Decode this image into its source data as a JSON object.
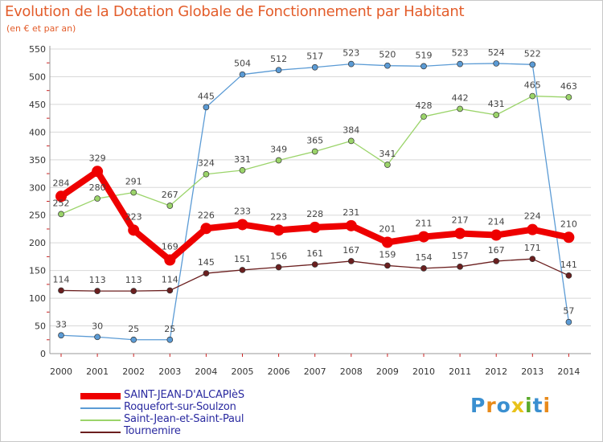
{
  "title": "Evolution de la Dotation Globale de Fonctionnement par Habitant",
  "subtitle": "(en € et par an)",
  "brand": {
    "text": "Proxiti",
    "letter_colors": [
      "#3a8fd0",
      "#e88a1a",
      "#3a8fd0",
      "#e8c21a",
      "#5aaa2a",
      "#3a8fd0",
      "#e88a1a"
    ]
  },
  "colors": {
    "title": "#e35d2b",
    "grid": "#d8d8d8",
    "axis_ticks": "#cc2222"
  },
  "chart_data": {
    "type": "line",
    "title": "Evolution de la Dotation Globale de Fonctionnement par Habitant",
    "ylabel": "(en € et par an)",
    "xlabel": "",
    "x": [
      "2000",
      "2001",
      "2002",
      "2003",
      "2004",
      "2005",
      "2006",
      "2007",
      "2008",
      "2009",
      "2010",
      "2011",
      "2012",
      "2013",
      "2014"
    ],
    "ylim": [
      0,
      550
    ],
    "yticks": [
      0,
      50,
      100,
      150,
      200,
      250,
      300,
      350,
      400,
      450,
      500,
      550
    ],
    "grid": "horizontal",
    "legend_position": "bottom-left",
    "series": [
      {
        "name": "Roquefort-sur-Soulzon",
        "color": "#5b9bd5",
        "values": [
          33,
          30,
          25,
          25,
          445,
          504,
          512,
          517,
          523,
          520,
          519,
          523,
          524,
          522,
          57
        ]
      },
      {
        "name": "Saint-Jean-et-Saint-Paul",
        "color": "#9bd46a",
        "values": [
          252,
          280,
          291,
          267,
          324,
          331,
          349,
          365,
          384,
          341,
          428,
          442,
          431,
          465,
          463
        ]
      },
      {
        "name": "Tournemire",
        "color": "#6b1f1f",
        "values": [
          114,
          113,
          113,
          114,
          145,
          151,
          156,
          161,
          167,
          159,
          154,
          157,
          167,
          171,
          141
        ]
      },
      {
        "name": "SAINT-JEAN-D'ALCAPIèS",
        "color": "#ee0000",
        "emphasis": true,
        "values": [
          284,
          329,
          223,
          169,
          226,
          233,
          223,
          228,
          231,
          201,
          211,
          217,
          214,
          224,
          210
        ]
      }
    ],
    "legend_order": [
      "SAINT-JEAN-D'ALCAPIèS",
      "Roquefort-sur-Soulzon",
      "Saint-Jean-et-Saint-Paul",
      "Tournemire"
    ]
  }
}
